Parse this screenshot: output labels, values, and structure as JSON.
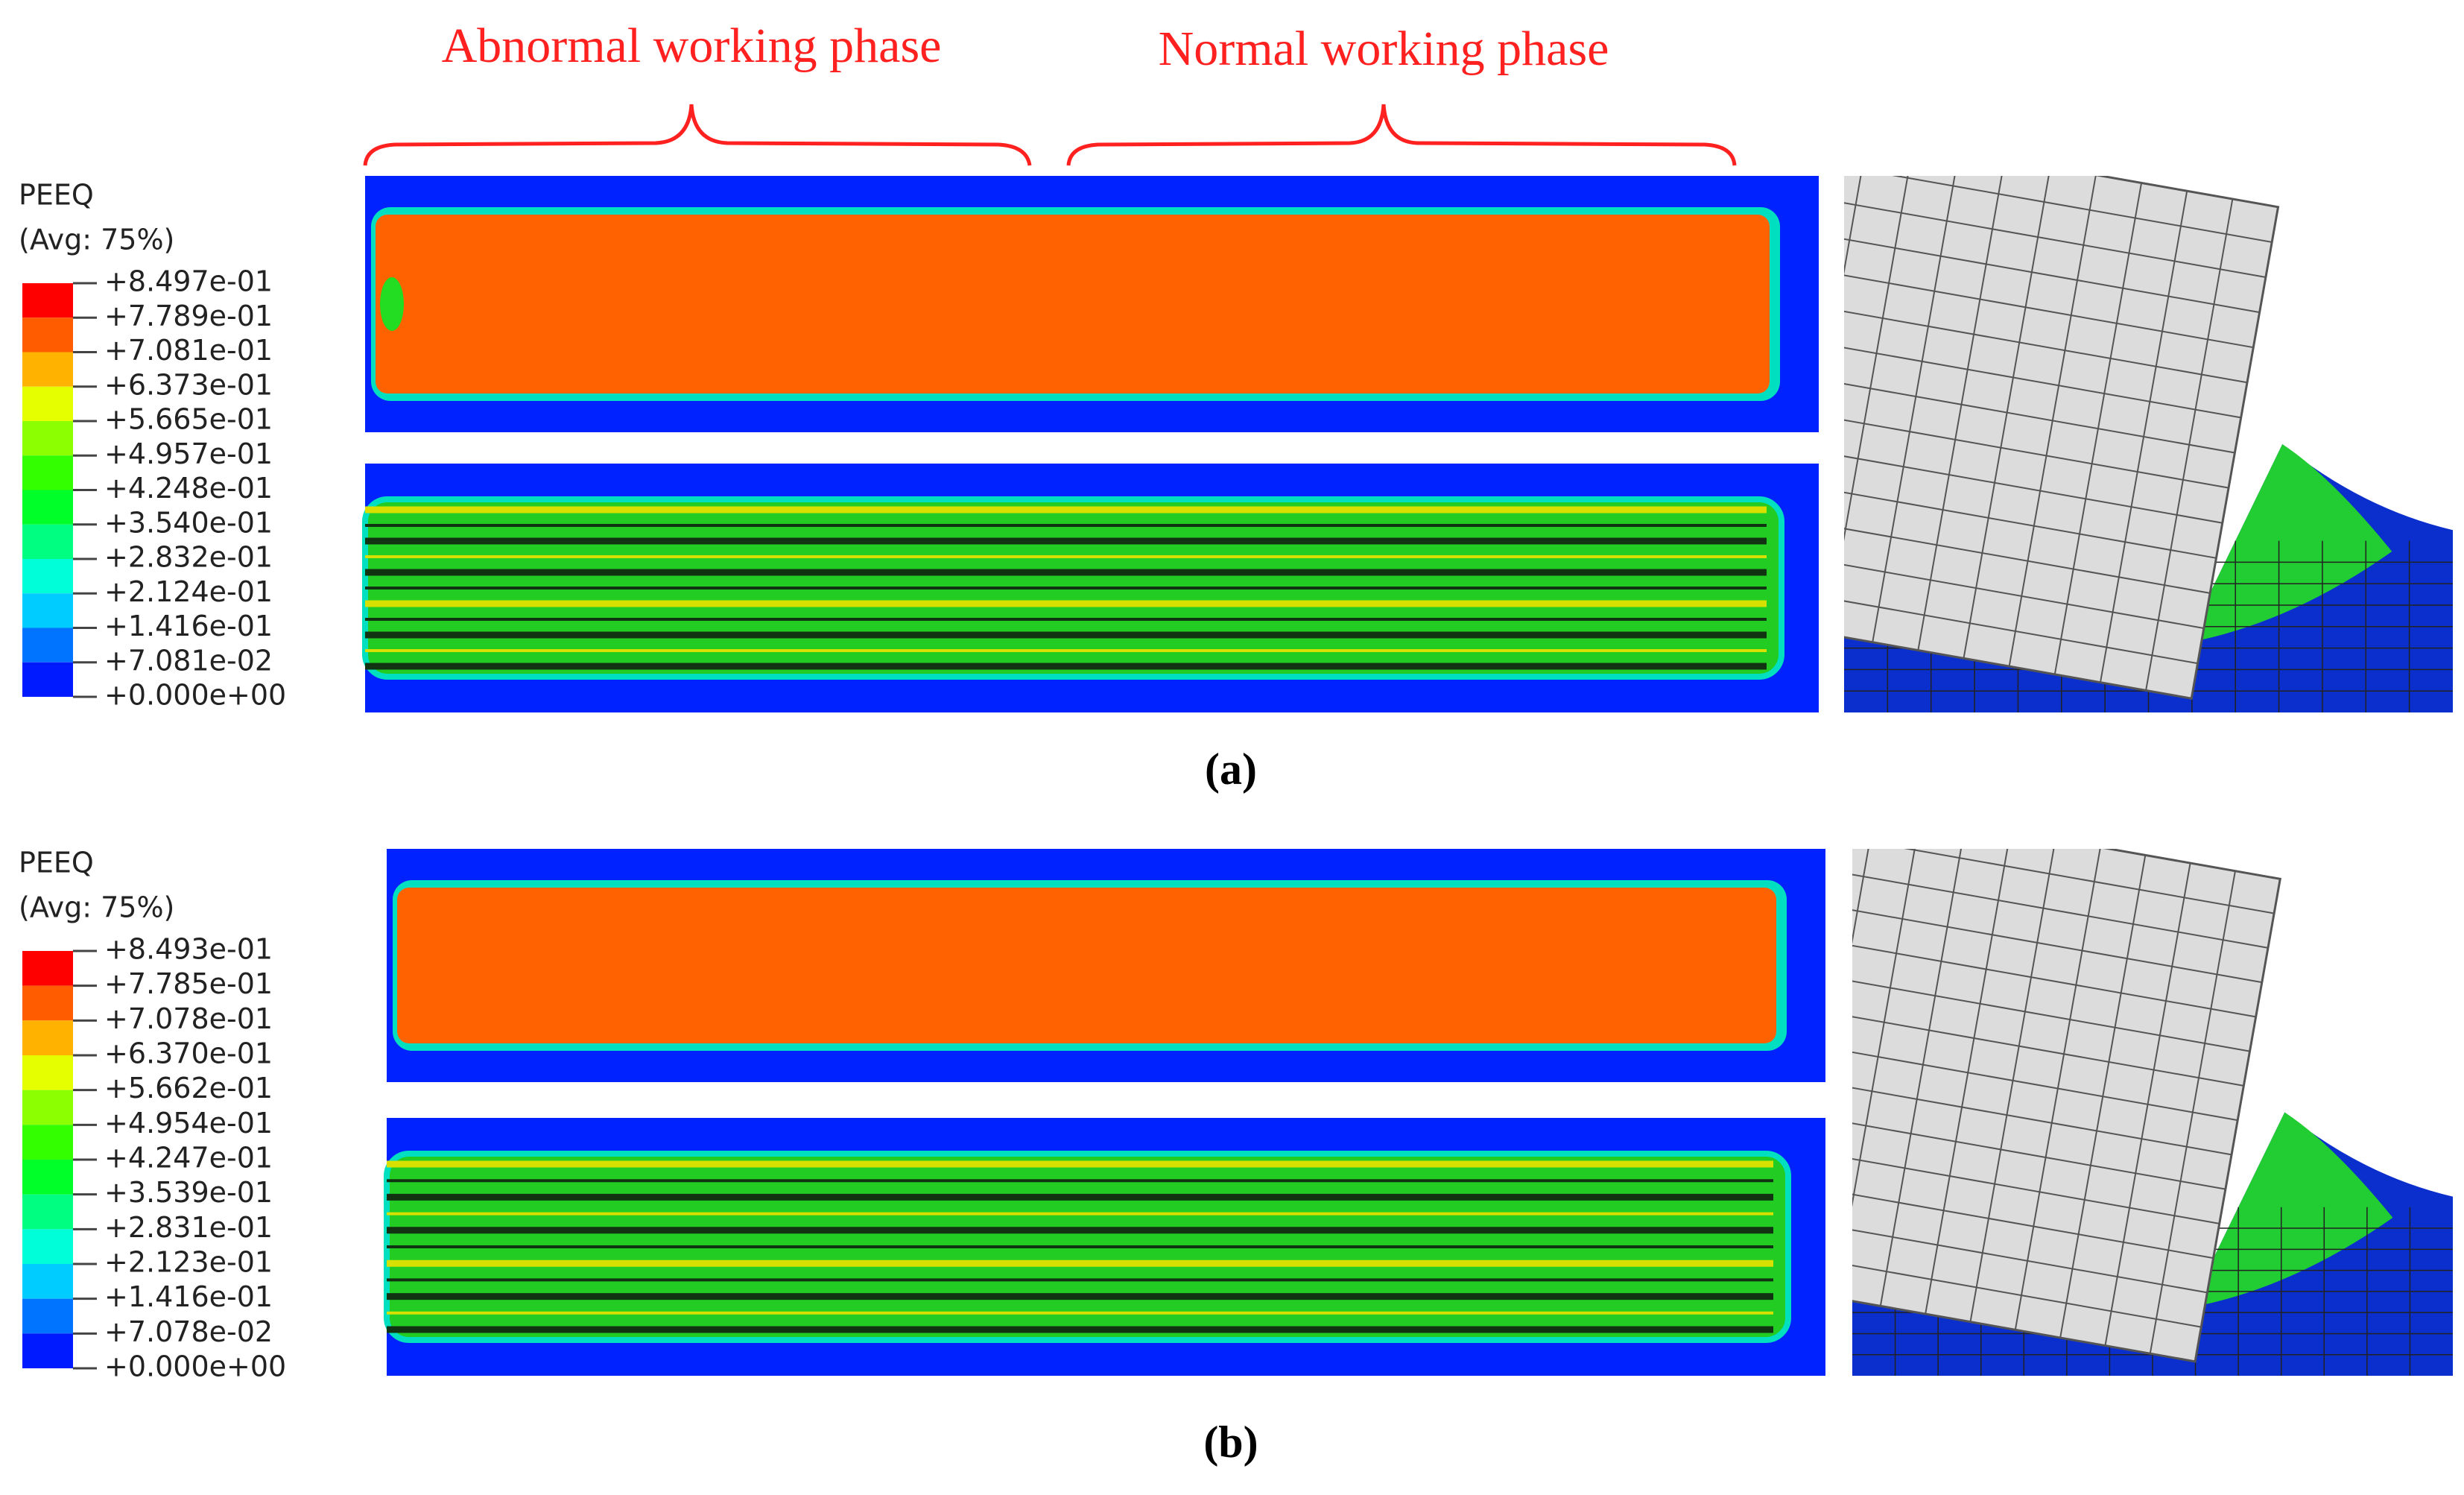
{
  "annotations": [
    "Abnormal working phase",
    "Normal working phase"
  ],
  "panels": [
    {
      "legend_title": "PEEQ",
      "legend_subtitle": "(Avg: 75%)",
      "legend_labels": [
        "+8.497e-01",
        "+7.789e-01",
        "+7.081e-01",
        "+6.373e-01",
        "+5.665e-01",
        "+4.957e-01",
        "+4.248e-01",
        "+3.540e-01",
        "+2.832e-01",
        "+2.124e-01",
        "+1.416e-01",
        "+7.081e-02",
        "+0.000e+00"
      ],
      "caption": "(a)"
    },
    {
      "legend_title": "PEEQ",
      "legend_subtitle": "(Avg: 75%)",
      "legend_labels": [
        "+8.493e-01",
        "+7.785e-01",
        "+7.078e-01",
        "+6.370e-01",
        "+5.662e-01",
        "+4.954e-01",
        "+4.247e-01",
        "+3.539e-01",
        "+2.831e-01",
        "+2.123e-01",
        "+1.416e-01",
        "+7.078e-02",
        "+0.000e+00"
      ],
      "caption": "(b)"
    }
  ]
}
